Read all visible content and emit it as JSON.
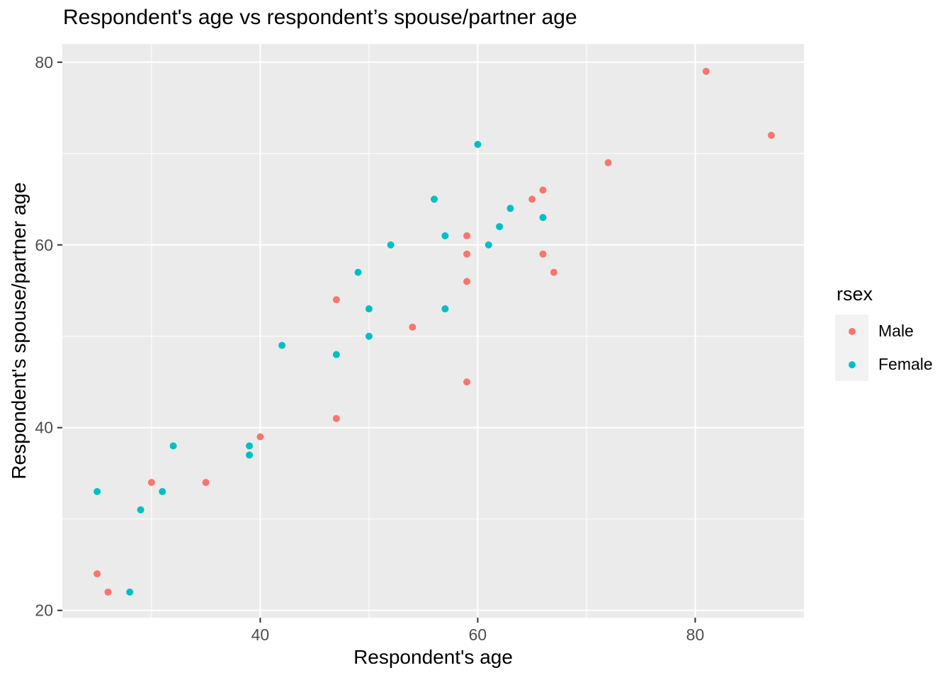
{
  "chart": {
    "title": "Respondent's age vs respondent’s spouse/partner age",
    "xlabel": "Respondent's age",
    "ylabel": "Respondent's spouse/partner age"
  },
  "legend": {
    "title": "rsex",
    "items": [
      {
        "label": "Male",
        "color": "#F8766D"
      },
      {
        "label": "Female",
        "color": "#00BFC4"
      }
    ]
  },
  "colors": {
    "panel_background": "#EBEBEB",
    "grid": "#FFFFFF",
    "tick_mark": "#333333",
    "tick_label": "#4D4D4D",
    "male": "#F8766D",
    "female": "#00BFC4"
  },
  "chart_data": {
    "type": "scatter",
    "title": "Respondent's age vs respondent’s spouse/partner age",
    "xlabel": "Respondent's age",
    "ylabel": "Respondent's spouse/partner age",
    "legend_title": "rsex",
    "legend_position": "right",
    "grid": "on",
    "xlim": [
      21.8,
      90.0
    ],
    "ylim": [
      19.2,
      82.0
    ],
    "x_ticks": [
      40,
      60,
      80
    ],
    "y_ticks": [
      20,
      40,
      60,
      80
    ],
    "x_minor": [
      30,
      50,
      70
    ],
    "y_minor": [
      30,
      50,
      70
    ],
    "series": [
      {
        "name": "Male",
        "color": "#F8766D",
        "points": [
          [
            25,
            24
          ],
          [
            26,
            22
          ],
          [
            30,
            34
          ],
          [
            35,
            34
          ],
          [
            40,
            39
          ],
          [
            47,
            41
          ],
          [
            47,
            54
          ],
          [
            54,
            51
          ],
          [
            59,
            45
          ],
          [
            59,
            56
          ],
          [
            59,
            59
          ],
          [
            59,
            61
          ],
          [
            65,
            65
          ],
          [
            66,
            66
          ],
          [
            66,
            59
          ],
          [
            67,
            57
          ],
          [
            72,
            69
          ],
          [
            81,
            79
          ],
          [
            87,
            72
          ]
        ]
      },
      {
        "name": "Female",
        "color": "#00BFC4",
        "points": [
          [
            25,
            33
          ],
          [
            28,
            22
          ],
          [
            29,
            31
          ],
          [
            31,
            33
          ],
          [
            32,
            38
          ],
          [
            39,
            38
          ],
          [
            39,
            37
          ],
          [
            42,
            49
          ],
          [
            47,
            48
          ],
          [
            49,
            57
          ],
          [
            50,
            53
          ],
          [
            50,
            50
          ],
          [
            52,
            60
          ],
          [
            56,
            65
          ],
          [
            57,
            53
          ],
          [
            57,
            61
          ],
          [
            60,
            71
          ],
          [
            61,
            60
          ],
          [
            62,
            62
          ],
          [
            63,
            64
          ],
          [
            66,
            63
          ]
        ]
      }
    ]
  }
}
